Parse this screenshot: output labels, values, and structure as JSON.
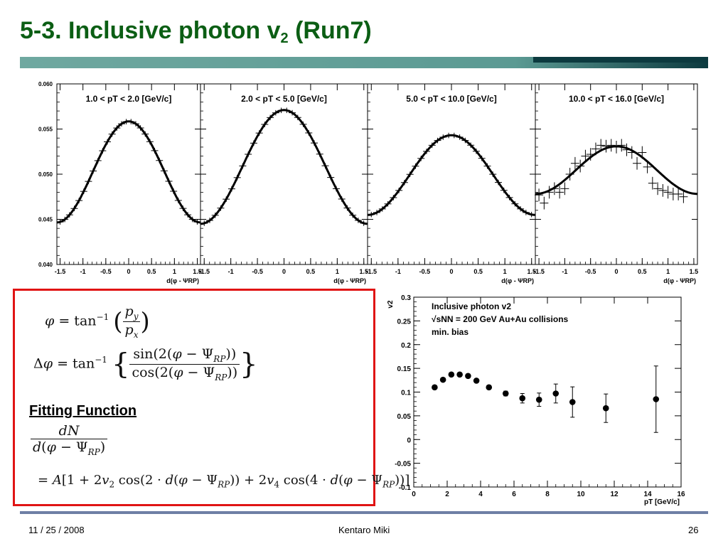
{
  "slide": {
    "title_main": "5-3. Inclusive photon v",
    "title_sub": "2",
    "title_tail": " (Run7)",
    "footer_date": "11 / 25 / 2008",
    "footer_author": "Kentaro Miki",
    "footer_page": "26",
    "title_color": "#0b5e14",
    "bar_colors": [
      "#5b9a93",
      "#0c3a3f"
    ],
    "footer_line_color": "#6e7fa5",
    "box_border_color": "#e01414"
  },
  "formulas": {
    "fitting_label": "Fitting Function"
  },
  "chart_data": [
    {
      "type": "line",
      "panel_label": "1.0 < pT < 2.0 [GeV/c]",
      "xlabel": "d(φ - ΨRP)",
      "ylim": [
        0.04,
        0.06
      ],
      "xlim": [
        -1.57,
        1.57
      ],
      "yticks": [
        "0.040",
        "0.045",
        "0.050",
        "0.055",
        "0.060"
      ],
      "xticks": [
        "-1.5",
        "-1",
        "-0.5",
        "0",
        "0.5",
        "1",
        "1.5"
      ],
      "fit": {
        "A": 0.05025,
        "v2": 0.0557,
        "v4": 0.0
      },
      "points_from_fit": true,
      "y_err": 0.0003
    },
    {
      "type": "line",
      "panel_label": "2.0 < pT < 5.0 [GeV/c]",
      "xlabel": "d(φ - ΨRP)",
      "ylim": [
        0.04,
        0.06
      ],
      "xlim": [
        -1.57,
        1.57
      ],
      "yticks": [
        "0.040",
        "0.045",
        "0.050",
        "0.055",
        "0.060"
      ],
      "xticks": [
        "-1.5",
        "-1",
        "-0.5",
        "0",
        "0.5",
        "1",
        "1.5"
      ],
      "fit": {
        "A": 0.0508,
        "v2": 0.062,
        "v4": 0.0
      },
      "points_from_fit": true,
      "y_err": 0.0003
    },
    {
      "type": "line",
      "panel_label": "5.0 < pT < 10.0 [GeV/c]",
      "xlabel": "d(φ - ΨRP)",
      "ylim": [
        0.04,
        0.06
      ],
      "xlim": [
        -1.57,
        1.57
      ],
      "yticks": [
        "0.040",
        "0.045",
        "0.050",
        "0.055",
        "0.060"
      ],
      "xticks": [
        "-1.5",
        "-1",
        "-0.5",
        "0",
        "0.5",
        "1",
        "1.5"
      ],
      "fit": {
        "A": 0.0499,
        "v2": 0.0442,
        "v4": 0.0
      },
      "points_from_fit": true,
      "y_err": 0.0003
    },
    {
      "type": "line",
      "panel_label": "10.0 < pT < 16.0 [GeV/c]",
      "xlabel": "d(φ - ΨRP)",
      "ylim": [
        0.04,
        0.06
      ],
      "xlim": [
        -1.57,
        1.57
      ],
      "yticks": [
        "0.040",
        "0.045",
        "0.050",
        "0.055",
        "0.060"
      ],
      "xticks": [
        "-1.5",
        "-1",
        "-0.5",
        "0",
        "0.5",
        "1",
        "1.5"
      ],
      "fit": {
        "A": 0.05045,
        "v2": 0.0261,
        "v4": 0.0
      },
      "points": [
        [
          -1.5,
          0.0477
        ],
        [
          -1.4,
          0.0468
        ],
        [
          -1.3,
          0.048
        ],
        [
          -1.2,
          0.0484
        ],
        [
          -1.1,
          0.048
        ],
        [
          -1.0,
          0.0484
        ],
        [
          -0.9,
          0.05
        ],
        [
          -0.8,
          0.0512
        ],
        [
          -0.7,
          0.0509
        ],
        [
          -0.6,
          0.052
        ],
        [
          -0.5,
          0.0522
        ],
        [
          -0.4,
          0.0528
        ],
        [
          -0.3,
          0.0532
        ],
        [
          -0.2,
          0.0531
        ],
        [
          -0.1,
          0.0532
        ],
        [
          0.0,
          0.053
        ],
        [
          0.1,
          0.0532
        ],
        [
          0.2,
          0.0527
        ],
        [
          0.3,
          0.0524
        ],
        [
          0.4,
          0.0512
        ],
        [
          0.5,
          0.0524
        ],
        [
          0.6,
          0.0508
        ],
        [
          0.7,
          0.049
        ],
        [
          0.8,
          0.0484
        ],
        [
          0.9,
          0.0482
        ],
        [
          1.0,
          0.048
        ],
        [
          1.1,
          0.0478
        ],
        [
          1.2,
          0.0478
        ],
        [
          1.3,
          0.0475
        ]
      ],
      "y_err": 0.0007
    },
    {
      "type": "scatter",
      "legend": [
        "Inclusive photon v2",
        "√sNN = 200 GeV Au+Au collisions",
        "min. bias"
      ],
      "xlabel": "pT [GeV/c]",
      "ylabel": "v2",
      "xlim": [
        0,
        16
      ],
      "ylim": [
        -0.1,
        0.3
      ],
      "xticks": [
        "0",
        "2",
        "4",
        "6",
        "8",
        "10",
        "12",
        "14",
        "16"
      ],
      "yticks": [
        "-0.1",
        "-0.05",
        "0",
        "0.05",
        "0.1",
        "0.15",
        "0.2",
        "0.25",
        "0.3"
      ],
      "points": [
        {
          "x": 1.25,
          "y": 0.11,
          "err": 0.003
        },
        {
          "x": 1.75,
          "y": 0.126,
          "err": 0.003
        },
        {
          "x": 2.25,
          "y": 0.137,
          "err": 0.003
        },
        {
          "x": 2.75,
          "y": 0.137,
          "err": 0.003
        },
        {
          "x": 3.25,
          "y": 0.134,
          "err": 0.003
        },
        {
          "x": 3.75,
          "y": 0.124,
          "err": 0.004
        },
        {
          "x": 4.5,
          "y": 0.11,
          "err": 0.004
        },
        {
          "x": 5.5,
          "y": 0.097,
          "err": 0.005
        },
        {
          "x": 6.5,
          "y": 0.087,
          "err": 0.01
        },
        {
          "x": 7.5,
          "y": 0.084,
          "err": 0.014
        },
        {
          "x": 8.5,
          "y": 0.097,
          "err": 0.02
        },
        {
          "x": 9.5,
          "y": 0.079,
          "err": 0.032
        },
        {
          "x": 11.5,
          "y": 0.066,
          "err": 0.03
        },
        {
          "x": 14.5,
          "y": 0.085,
          "err": 0.07
        }
      ]
    }
  ]
}
